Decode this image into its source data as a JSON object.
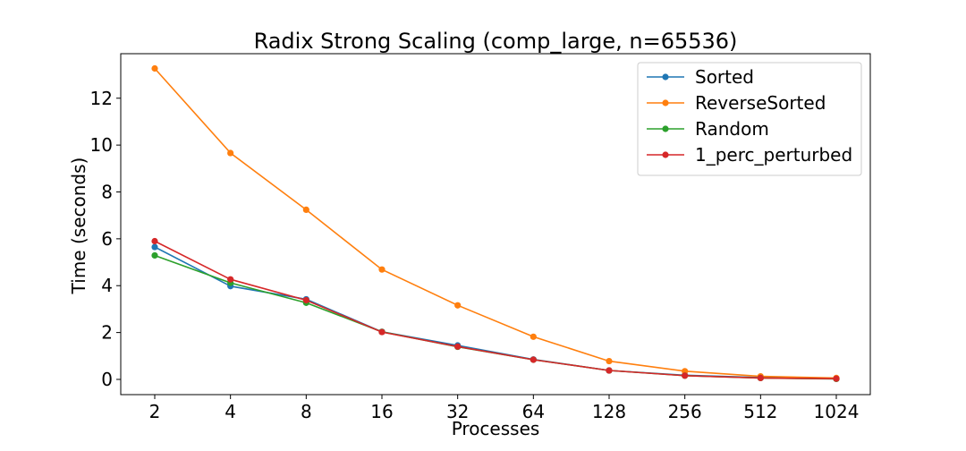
{
  "chart_data": {
    "type": "line",
    "title": "Radix Strong Scaling (comp_large, n=65536)",
    "xlabel": "Processes",
    "ylabel": "Time (seconds)",
    "categories": [
      "2",
      "4",
      "8",
      "16",
      "32",
      "64",
      "128",
      "256",
      "512",
      "1024"
    ],
    "x_scale": "log2",
    "ylim": [
      -0.65,
      13.9
    ],
    "yticks": [
      0,
      2,
      4,
      6,
      8,
      10,
      12
    ],
    "grid": false,
    "legend_position": "upper-right",
    "series": [
      {
        "name": "Sorted",
        "color": "#1f77b4",
        "marker": "circle",
        "values": [
          5.65,
          3.98,
          3.42,
          2.03,
          1.45,
          0.85,
          0.38,
          0.18,
          0.08,
          0.03
        ]
      },
      {
        "name": "ReverseSorted",
        "color": "#ff7f0e",
        "marker": "circle",
        "values": [
          13.27,
          9.66,
          7.24,
          4.69,
          3.16,
          1.82,
          0.78,
          0.35,
          0.13,
          0.06
        ]
      },
      {
        "name": "Random",
        "color": "#2ca02c",
        "marker": "circle",
        "values": [
          5.29,
          4.12,
          3.27,
          2.03,
          1.39,
          0.84,
          0.38,
          0.16,
          0.06,
          0.02
        ]
      },
      {
        "name": "1_perc_perturbed",
        "color": "#d62728",
        "marker": "circle",
        "values": [
          5.9,
          4.27,
          3.38,
          2.02,
          1.4,
          0.84,
          0.38,
          0.16,
          0.06,
          0.03
        ]
      }
    ]
  }
}
